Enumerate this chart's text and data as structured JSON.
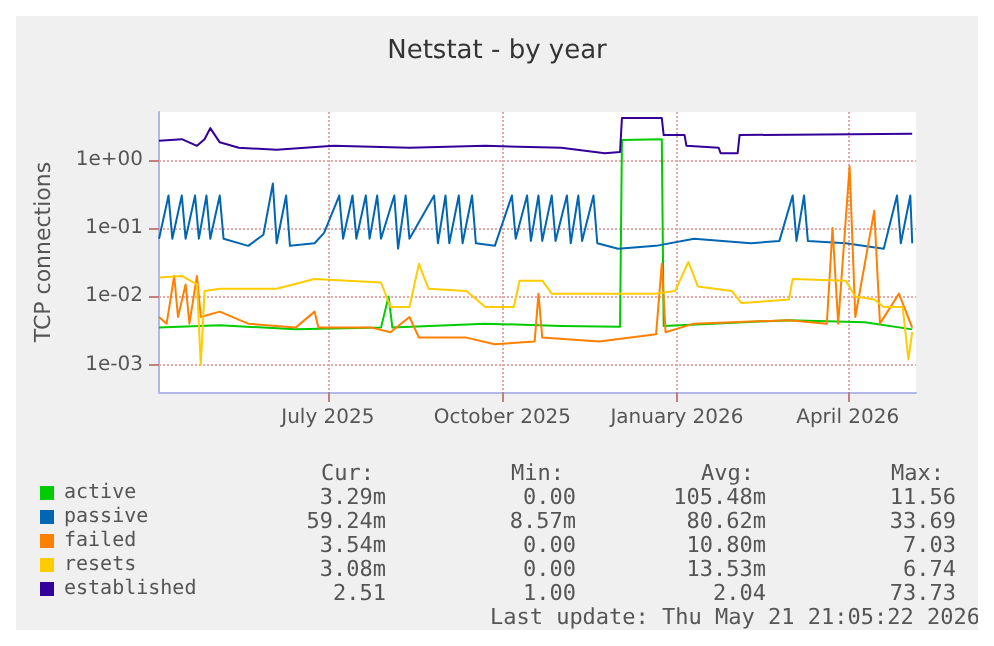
{
  "chart_data": {
    "type": "line",
    "title": "Netstat - by year",
    "ylabel": "TCP connections",
    "log": true,
    "grid": true,
    "legend": "bottom left",
    "marker": "none",
    "line_style": "solid",
    "xlim": [
      "2025-04-03",
      "2026-05-07"
    ],
    "xticks": [
      {
        "value": "2025-07-01",
        "label": "July 2025"
      },
      {
        "value": "2025-10-01",
        "label": "October 2025"
      },
      {
        "value": "2026-01-01",
        "label": "January 2026"
      },
      {
        "value": "2026-04-01",
        "label": "April 2026"
      }
    ],
    "ylim": [
      0.0004,
      5
    ],
    "yticks": [
      {
        "value": 0.001,
        "label": "1e-03"
      },
      {
        "value": 0.01,
        "label": "1e-02"
      },
      {
        "value": 0.1,
        "label": "1e-01"
      },
      {
        "value": 1,
        "label": "1e+00"
      }
    ],
    "series": [
      {
        "name": "active",
        "color": "#00cc00",
        "x": [
          "2025-04-03",
          "2025-05-05",
          "2025-06-14",
          "2025-07-29",
          "2025-08-02",
          "2025-08-04",
          "2025-09-22",
          "2025-11-01",
          "2025-12-02",
          "2025-12-03",
          "2025-12-24",
          "2025-12-25",
          "2026-01-20",
          "2026-03-01",
          "2026-04-10",
          "2026-05-05"
        ],
        "values": [
          0.0035,
          0.0038,
          0.0033,
          0.0035,
          0.01,
          0.0035,
          0.004,
          0.0037,
          0.0036,
          1.95,
          2,
          0.0037,
          0.004,
          0.0045,
          0.0042,
          0.0033
        ]
      },
      {
        "name": "passive",
        "color": "#0066b3",
        "x": [
          "2025-04-03",
          "2025-04-08",
          "2025-04-10",
          "2025-04-15",
          "2025-04-17",
          "2025-04-22",
          "2025-04-24",
          "2025-04-28",
          "2025-04-30",
          "2025-05-05",
          "2025-05-07",
          "2025-05-20",
          "2025-05-28",
          "2025-06-02",
          "2025-06-04",
          "2025-06-09",
          "2025-06-11",
          "2025-06-24",
          "2025-06-29",
          "2025-07-07",
          "2025-07-09",
          "2025-07-14",
          "2025-07-16",
          "2025-07-21",
          "2025-07-23",
          "2025-07-27",
          "2025-07-29",
          "2025-08-05",
          "2025-08-07",
          "2025-08-11",
          "2025-08-13",
          "2025-08-26",
          "2025-08-28",
          "2025-09-01",
          "2025-09-03",
          "2025-09-08",
          "2025-09-10",
          "2025-09-15",
          "2025-09-17",
          "2025-09-27",
          "2025-10-06",
          "2025-10-08",
          "2025-10-14",
          "2025-10-16",
          "2025-10-20",
          "2025-10-22",
          "2025-10-27",
          "2025-10-29",
          "2025-11-04",
          "2025-11-06",
          "2025-11-10",
          "2025-11-12",
          "2025-11-18",
          "2025-11-20",
          "2025-12-01",
          "2025-12-21",
          "2026-01-10",
          "2026-02-09",
          "2026-02-24",
          "2026-03-03",
          "2026-03-05",
          "2026-03-09",
          "2026-03-11",
          "2026-03-31",
          "2026-04-20",
          "2026-04-27",
          "2026-04-29",
          "2026-05-04",
          "2026-05-05"
        ],
        "values": [
          0.07,
          0.3,
          0.07,
          0.3,
          0.07,
          0.3,
          0.07,
          0.3,
          0.07,
          0.3,
          0.07,
          0.055,
          0.08,
          0.45,
          0.06,
          0.3,
          0.055,
          0.06,
          0.085,
          0.3,
          0.07,
          0.3,
          0.07,
          0.3,
          0.07,
          0.3,
          0.07,
          0.3,
          0.05,
          0.3,
          0.07,
          0.3,
          0.06,
          0.3,
          0.06,
          0.3,
          0.06,
          0.3,
          0.06,
          0.055,
          0.3,
          0.07,
          0.3,
          0.065,
          0.3,
          0.065,
          0.3,
          0.065,
          0.3,
          0.06,
          0.3,
          0.065,
          0.3,
          0.06,
          0.05,
          0.055,
          0.07,
          0.06,
          0.065,
          0.3,
          0.065,
          0.3,
          0.065,
          0.06,
          0.05,
          0.3,
          0.06,
          0.3,
          0.06
        ]
      },
      {
        "name": "failed",
        "color": "#ff8000",
        "x": [
          "2025-04-03",
          "2025-04-07",
          "2025-04-11",
          "2025-04-13",
          "2025-04-17",
          "2025-04-19",
          "2025-04-23",
          "2025-04-25",
          "2025-05-05",
          "2025-05-20",
          "2025-06-14",
          "2025-06-24",
          "2025-06-26",
          "2025-07-24",
          "2025-08-03",
          "2025-08-13",
          "2025-08-18",
          "2025-09-12",
          "2025-09-27",
          "2025-10-18",
          "2025-10-20",
          "2025-10-22",
          "2025-11-21",
          "2025-12-21",
          "2025-12-24",
          "2025-12-26",
          "2026-01-10",
          "2026-03-01",
          "2026-03-21",
          "2026-03-24",
          "2026-03-27",
          "2026-04-02",
          "2026-04-05",
          "2026-04-15",
          "2026-04-18",
          "2026-04-28",
          "2026-05-05"
        ],
        "values": [
          0.005,
          0.004,
          0.02,
          0.005,
          0.015,
          0.004,
          0.02,
          0.005,
          0.006,
          0.004,
          0.0035,
          0.006,
          0.0035,
          0.0035,
          0.003,
          0.005,
          0.0025,
          0.0025,
          0.002,
          0.0022,
          0.011,
          0.0025,
          0.0022,
          0.0028,
          0.03,
          0.003,
          0.004,
          0.0045,
          0.004,
          0.1,
          0.004,
          0.8,
          0.005,
          0.18,
          0.004,
          0.011,
          0.0035
        ]
      },
      {
        "name": "resets",
        "color": "#ffcc00",
        "x": [
          "2025-04-03",
          "2025-04-15",
          "2025-04-23",
          "2025-04-25",
          "2025-04-27",
          "2025-05-05",
          "2025-06-04",
          "2025-06-24",
          "2025-07-29",
          "2025-08-03",
          "2025-08-13",
          "2025-08-18",
          "2025-08-23",
          "2025-09-12",
          "2025-09-22",
          "2025-10-07",
          "2025-10-10",
          "2025-10-22",
          "2025-10-27",
          "2025-12-21",
          "2025-12-31",
          "2026-01-07",
          "2026-01-12",
          "2026-01-30",
          "2026-02-04",
          "2026-03-01",
          "2026-03-03",
          "2026-03-31",
          "2026-04-05",
          "2026-04-15",
          "2026-04-20",
          "2026-04-30",
          "2026-05-03",
          "2026-05-05"
        ],
        "values": [
          0.019,
          0.02,
          0.015,
          0.001,
          0.012,
          0.013,
          0.013,
          0.018,
          0.016,
          0.007,
          0.007,
          0.03,
          0.013,
          0.012,
          0.007,
          0.007,
          0.017,
          0.017,
          0.011,
          0.011,
          0.012,
          0.032,
          0.014,
          0.012,
          0.008,
          0.009,
          0.018,
          0.017,
          0.01,
          0.009,
          0.007,
          0.007,
          0.0012,
          0.003
        ]
      },
      {
        "name": "established",
        "color": "#330099",
        "x": [
          "2025-04-03",
          "2025-04-15",
          "2025-04-23",
          "2025-04-27",
          "2025-04-30",
          "2025-05-05",
          "2025-05-15",
          "2025-06-04",
          "2025-07-04",
          "2025-08-13",
          "2025-09-22",
          "2025-11-01",
          "2025-11-24",
          "2025-12-02",
          "2025-12-03",
          "2025-12-24",
          "2025-12-25",
          "2026-01-05",
          "2026-01-06",
          "2026-01-23",
          "2026-01-24",
          "2026-02-02",
          "2026-02-03",
          "2026-05-05"
        ],
        "values": [
          1.9,
          2,
          1.6,
          2,
          2.9,
          1.8,
          1.5,
          1.4,
          1.6,
          1.5,
          1.6,
          1.5,
          1.25,
          1.3,
          4.1,
          4.1,
          2.3,
          2.3,
          1.6,
          1.5,
          1.25,
          1.25,
          2.3,
          2.4
        ]
      }
    ],
    "annotations": [
      "Cur:",
      "Min:",
      "Avg:",
      "Max:",
      "3.29m",
      "0.00",
      "105.48m",
      "11.56",
      "59.24m",
      "8.57m",
      "80.62m",
      "33.69",
      "3.54m",
      "0.00",
      "10.80m",
      "7.03",
      "3.08m",
      "0.00",
      "13.53m",
      "6.74",
      "2.51",
      "1.00",
      "2.04",
      "73.73",
      "Last update: Thu May 21 21:05:22 2026"
    ]
  }
}
